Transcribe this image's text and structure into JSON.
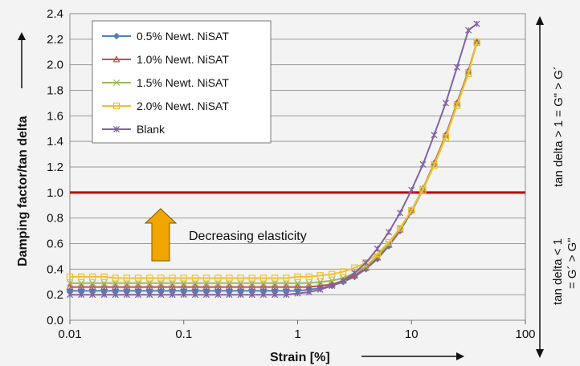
{
  "chart_data": {
    "type": "line",
    "xlabel": "Strain [%]",
    "ylabel": "Damping factor/tan delta",
    "x_scale": "log",
    "xlim": [
      0.01,
      100
    ],
    "ylim": [
      0,
      2.4
    ],
    "x_ticks": [
      "0.01",
      "0.1",
      "1",
      "10",
      "100"
    ],
    "y_ticks": [
      "0.0",
      "0.2",
      "0.4",
      "0.6",
      "0.8",
      "1.0",
      "1.2",
      "1.4",
      "1.6",
      "1.8",
      "2.0",
      "2.2",
      "2.4"
    ],
    "grid": "horizontal",
    "legend_position": "top-left",
    "reference_line": {
      "y": 1.0,
      "color": "#c00000"
    },
    "annotation": "Decreasing elasticity",
    "right_labels": {
      "upper": "tan delta > 1 = Gʺ > G´",
      "lower_1": "tan delta < 1",
      "lower_2": "= G´ > Gʺ"
    },
    "series": [
      {
        "name": "0.5% Newt. NiSAT",
        "color": "#4f81bd",
        "marker": "diamond",
        "x": [
          0.01,
          0.0126,
          0.0158,
          0.02,
          0.0251,
          0.0316,
          0.0398,
          0.0501,
          0.0631,
          0.0794,
          0.1,
          0.126,
          0.158,
          0.2,
          0.251,
          0.316,
          0.398,
          0.501,
          0.631,
          0.794,
          1,
          1.26,
          1.58,
          2,
          2.51,
          3.16,
          3.98,
          5.01,
          6.31,
          7.94,
          10,
          12.6,
          15.8,
          20,
          25.1,
          31.6,
          37.5
        ],
        "y": [
          0.23,
          0.23,
          0.23,
          0.23,
          0.23,
          0.23,
          0.23,
          0.23,
          0.23,
          0.23,
          0.23,
          0.23,
          0.23,
          0.23,
          0.23,
          0.23,
          0.23,
          0.23,
          0.23,
          0.23,
          0.23,
          0.24,
          0.25,
          0.27,
          0.3,
          0.34,
          0.4,
          0.48,
          0.58,
          0.7,
          0.85,
          1.02,
          1.22,
          1.45,
          1.7,
          1.95,
          2.17
        ]
      },
      {
        "name": "1.0% Newt. NiSAT",
        "color": "#c0504d",
        "marker": "triangle",
        "x": [
          0.01,
          0.0126,
          0.0158,
          0.02,
          0.0251,
          0.0316,
          0.0398,
          0.0501,
          0.0631,
          0.0794,
          0.1,
          0.126,
          0.158,
          0.2,
          0.251,
          0.316,
          0.398,
          0.501,
          0.631,
          0.794,
          1,
          1.26,
          1.58,
          2,
          2.51,
          3.16,
          3.98,
          5.01,
          6.31,
          7.94,
          10,
          12.6,
          15.8,
          20,
          25.1,
          31.6,
          37.5
        ],
        "y": [
          0.26,
          0.26,
          0.26,
          0.26,
          0.26,
          0.26,
          0.26,
          0.26,
          0.26,
          0.26,
          0.26,
          0.26,
          0.26,
          0.26,
          0.26,
          0.26,
          0.26,
          0.26,
          0.26,
          0.26,
          0.26,
          0.26,
          0.27,
          0.28,
          0.31,
          0.35,
          0.41,
          0.49,
          0.59,
          0.71,
          0.86,
          1.03,
          1.23,
          1.45,
          1.7,
          1.95,
          2.18
        ]
      },
      {
        "name": "1.5% Newt. NiSAT",
        "color": "#9bbb59",
        "marker": "x",
        "x": [
          0.01,
          0.0126,
          0.0158,
          0.02,
          0.0251,
          0.0316,
          0.0398,
          0.0501,
          0.0631,
          0.0794,
          0.1,
          0.126,
          0.158,
          0.2,
          0.251,
          0.316,
          0.398,
          0.501,
          0.631,
          0.794,
          1,
          1.26,
          1.58,
          2,
          2.51,
          3.16,
          3.98,
          5.01,
          6.31,
          7.94,
          10,
          12.6,
          15.8,
          20,
          25.1,
          31.6,
          37.5
        ],
        "y": [
          0.29,
          0.29,
          0.29,
          0.29,
          0.29,
          0.29,
          0.29,
          0.29,
          0.29,
          0.29,
          0.29,
          0.29,
          0.29,
          0.29,
          0.29,
          0.29,
          0.29,
          0.29,
          0.29,
          0.29,
          0.29,
          0.29,
          0.3,
          0.31,
          0.33,
          0.37,
          0.42,
          0.5,
          0.6,
          0.72,
          0.86,
          1.03,
          1.22,
          1.44,
          1.69,
          1.94,
          2.17
        ]
      },
      {
        "name": "2.0% Newt. NiSAT",
        "color": "#f2c12e",
        "marker": "square",
        "x": [
          0.01,
          0.0126,
          0.0158,
          0.02,
          0.0251,
          0.0316,
          0.0398,
          0.0501,
          0.0631,
          0.0794,
          0.1,
          0.126,
          0.158,
          0.2,
          0.251,
          0.316,
          0.398,
          0.501,
          0.631,
          0.794,
          1,
          1.26,
          1.58,
          2,
          2.51,
          3.16,
          3.98,
          5.01,
          6.31,
          7.94,
          10,
          12.6,
          15.8,
          20,
          25.1,
          31.6,
          37.5
        ],
        "y": [
          0.34,
          0.34,
          0.34,
          0.34,
          0.33,
          0.33,
          0.33,
          0.33,
          0.33,
          0.33,
          0.33,
          0.33,
          0.33,
          0.33,
          0.33,
          0.33,
          0.33,
          0.33,
          0.33,
          0.33,
          0.34,
          0.34,
          0.35,
          0.36,
          0.38,
          0.41,
          0.45,
          0.52,
          0.61,
          0.72,
          0.86,
          1.02,
          1.21,
          1.43,
          1.68,
          1.93,
          2.18
        ]
      },
      {
        "name": "Blank",
        "color": "#8064a2",
        "marker": "star",
        "x": [
          0.01,
          0.0126,
          0.0158,
          0.02,
          0.0251,
          0.0316,
          0.0398,
          0.0501,
          0.0631,
          0.0794,
          0.1,
          0.126,
          0.158,
          0.2,
          0.251,
          0.316,
          0.398,
          0.501,
          0.631,
          0.794,
          1,
          1.26,
          1.58,
          2,
          2.51,
          3.16,
          3.98,
          5.01,
          6.31,
          7.94,
          10,
          12.6,
          15.8,
          20,
          25.1,
          31.6,
          37.5
        ],
        "y": [
          0.2,
          0.2,
          0.2,
          0.2,
          0.2,
          0.2,
          0.2,
          0.2,
          0.2,
          0.2,
          0.2,
          0.2,
          0.2,
          0.2,
          0.2,
          0.2,
          0.2,
          0.2,
          0.2,
          0.2,
          0.21,
          0.22,
          0.24,
          0.27,
          0.31,
          0.37,
          0.45,
          0.56,
          0.69,
          0.84,
          1.02,
          1.22,
          1.45,
          1.7,
          1.98,
          2.27,
          2.32
        ]
      }
    ]
  }
}
